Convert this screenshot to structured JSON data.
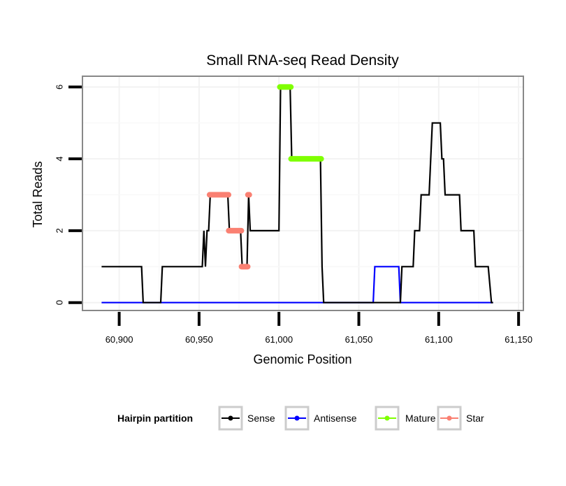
{
  "chart_data": {
    "type": "line",
    "title": "Small RNA-seq Read Density",
    "xlabel": "Genomic Position",
    "ylabel": "Total Reads",
    "xlim": [
      60877,
      61153
    ],
    "ylim": [
      -0.22,
      6.3
    ],
    "xticks": [
      60900,
      60950,
      61000,
      61050,
      61100,
      61150
    ],
    "xtick_labels": [
      "60,900",
      "60,950",
      "61,000",
      "61,050",
      "61,100",
      "61,150"
    ],
    "yticks": [
      0,
      2,
      4,
      6
    ],
    "ytick_labels": [
      "0",
      "2",
      "4",
      "6"
    ],
    "grid": true,
    "legend": {
      "title": "Hairpin partition",
      "placement": "bottom",
      "entries": [
        "Sense",
        "Antisense",
        "Mature",
        "Star"
      ]
    },
    "colors": {
      "Sense": "#000000",
      "Antisense": "#0000ff",
      "Mature": "#7fff00",
      "Star": "#fa8072"
    },
    "series": [
      {
        "name": "Sense",
        "type": "line",
        "points": [
          [
            60889,
            1
          ],
          [
            60914,
            1
          ],
          [
            60915,
            0
          ],
          [
            60926,
            0
          ],
          [
            60927,
            1
          ],
          [
            60952,
            1
          ],
          [
            60953,
            2
          ],
          [
            60954,
            1
          ],
          [
            60955,
            2
          ],
          [
            60956,
            2
          ],
          [
            60957,
            3
          ],
          [
            60968,
            3
          ],
          [
            60969,
            2
          ],
          [
            60976,
            2
          ],
          [
            60977,
            1
          ],
          [
            60980,
            1
          ],
          [
            60981,
            3
          ],
          [
            60982,
            2
          ],
          [
            61000,
            2
          ],
          [
            61001,
            6
          ],
          [
            61007,
            6
          ],
          [
            61008,
            4
          ],
          [
            61026,
            4
          ],
          [
            61027,
            1
          ],
          [
            61028,
            0
          ],
          [
            61076,
            0
          ],
          [
            61077,
            1
          ],
          [
            61084,
            1
          ],
          [
            61085,
            2
          ],
          [
            61088,
            2
          ],
          [
            61089,
            3
          ],
          [
            61094,
            3
          ],
          [
            61096,
            5
          ],
          [
            61101,
            5
          ],
          [
            61102,
            4
          ],
          [
            61103,
            4
          ],
          [
            61104,
            3
          ],
          [
            61113,
            3
          ],
          [
            61114,
            2
          ],
          [
            61122,
            2
          ],
          [
            61123,
            1
          ],
          [
            61131,
            1
          ],
          [
            61133,
            0
          ],
          [
            61134,
            0
          ]
        ]
      },
      {
        "name": "Antisense",
        "type": "line",
        "points": [
          [
            60889,
            0
          ],
          [
            61059,
            0
          ],
          [
            61060,
            1
          ],
          [
            61075,
            1
          ],
          [
            61076,
            0
          ],
          [
            61134,
            0
          ]
        ]
      },
      {
        "name": "Mature",
        "type": "segments",
        "segments": [
          {
            "x": [
              61001,
              61007
            ],
            "y": 6
          },
          {
            "x": [
              61008,
              61026
            ],
            "y": 4
          }
        ]
      },
      {
        "name": "Star",
        "type": "segments",
        "segments": [
          {
            "x": [
              60957,
              60968
            ],
            "y": 3
          },
          {
            "x": [
              60969,
              60976
            ],
            "y": 2
          },
          {
            "x": [
              60977,
              60980
            ],
            "y": 1
          },
          {
            "x": [
              60981,
              60981
            ],
            "y": 3
          }
        ]
      }
    ]
  }
}
